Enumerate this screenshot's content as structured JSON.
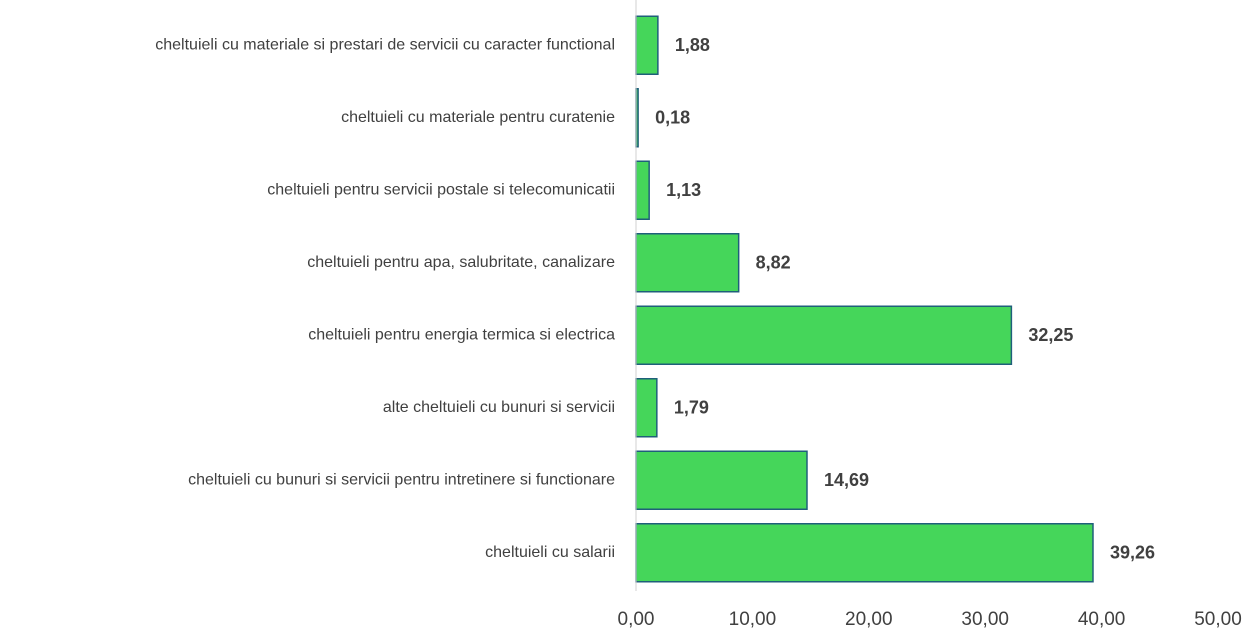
{
  "chart_data": {
    "type": "bar",
    "orientation": "horizontal",
    "categories": [
      "cheltuieli cu materiale si prestari de servicii cu caracter functional",
      "cheltuieli cu materiale pentru curatenie",
      "cheltuieli pentru servicii postale si telecomunicatii",
      "cheltuieli pentru apa, salubritate, canalizare",
      "cheltuieli pentru energia termica si electrica",
      "alte cheltuieli cu bunuri  si servicii",
      "cheltuieli cu bunuri  si servicii pentru intretinere si functionare",
      "cheltuieli cu salarii"
    ],
    "values": [
      1.88,
      0.18,
      1.13,
      8.82,
      32.25,
      1.79,
      14.69,
      39.26
    ],
    "value_labels": [
      "1,88",
      "0,18",
      "1,13",
      "8,82",
      "32,25",
      "1,79",
      "14,69",
      "39,26"
    ],
    "color": "#45d65a",
    "edgecolor": "#1f5f7a",
    "xlim": [
      0,
      50
    ],
    "xticks": [
      {
        "value": 0,
        "label": "0,00"
      },
      {
        "value": 10,
        "label": "10,00"
      },
      {
        "value": 20,
        "label": "20,00"
      },
      {
        "value": 30,
        "label": "30,00"
      },
      {
        "value": 40,
        "label": "40,00"
      },
      {
        "value": 50,
        "label": "50,00"
      }
    ],
    "grid": false
  }
}
